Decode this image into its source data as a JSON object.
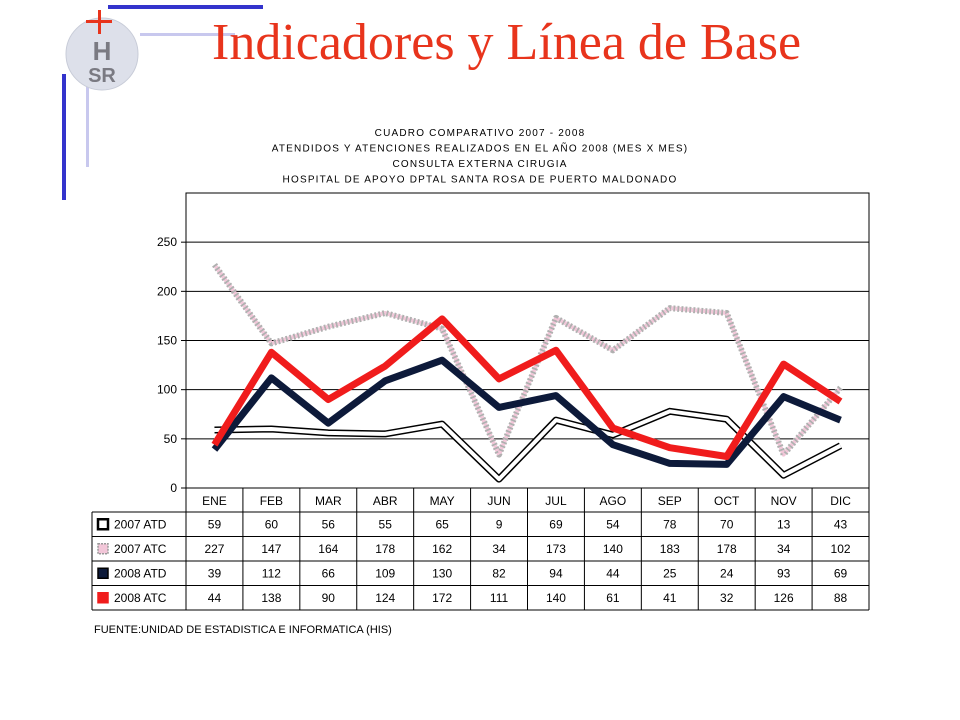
{
  "slide": {
    "title": "Indicadores y Línea de Base",
    "logo_text": "HSR"
  },
  "chart_data": {
    "type": "line",
    "title_lines": [
      "CUADRO COMPARATIVO 2007 - 2008",
      "ATENDIDOS Y ATENCIONES REALIZADOS EN EL AÑO 2008 (MES X MES)",
      "CONSULTA EXTERNA CIRUGIA",
      "HOSPITAL DE APOYO DPTAL SANTA ROSA DE PUERTO MALDONADO"
    ],
    "categories": [
      "ENE",
      "FEB",
      "MAR",
      "ABR",
      "MAY",
      "JUN",
      "JUL",
      "AGO",
      "SEP",
      "OCT",
      "NOV",
      "DIC"
    ],
    "ylim": [
      0,
      300
    ],
    "yticks": [
      0,
      50,
      100,
      150,
      200,
      250
    ],
    "grid": true,
    "legend": "data table below chart",
    "series": [
      {
        "name": "2007 ATD",
        "values": [
          59,
          60,
          56,
          55,
          65,
          9,
          69,
          54,
          78,
          70,
          13,
          43
        ],
        "color": "#ffffff",
        "outline": "#000000",
        "style": "double-outline"
      },
      {
        "name": "2007 ATC",
        "values": [
          227,
          147,
          164,
          178,
          162,
          34,
          173,
          140,
          183,
          178,
          34,
          102
        ],
        "color": "#f2c6d8",
        "outline": "#999999",
        "style": "checkered"
      },
      {
        "name": "2008 ATD",
        "values": [
          39,
          112,
          66,
          109,
          130,
          82,
          94,
          44,
          25,
          24,
          93,
          69
        ],
        "color": "#0d1a3a",
        "outline": "#000000",
        "style": "solid-dark"
      },
      {
        "name": "2008 ATC",
        "values": [
          44,
          138,
          90,
          124,
          172,
          111,
          140,
          61,
          41,
          32,
          126,
          88
        ],
        "color": "#f01c1c",
        "outline": "#f01c1c",
        "style": "solid-red"
      }
    ],
    "source": "FUENTE:UNIDAD DE ESTADISTICA E INFORMATICA (HIS)"
  }
}
